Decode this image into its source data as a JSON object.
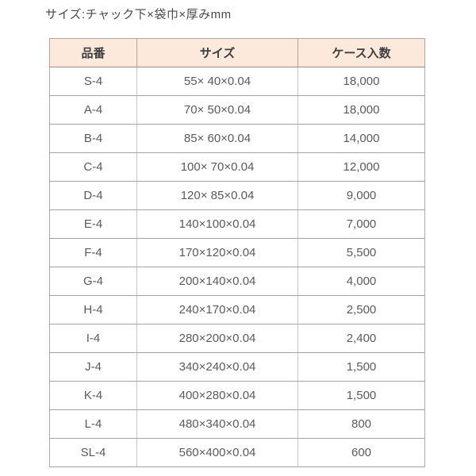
{
  "page": {
    "caption": "サイズ:チャック下×袋巾×厚みmm"
  },
  "table": {
    "columns": [
      "品番",
      "サイズ",
      "ケース入数"
    ],
    "rows": [
      {
        "part_no": "S-4",
        "size": "55× 40×0.04",
        "case_qty": "18,000"
      },
      {
        "part_no": "A-4",
        "size": "70× 50×0.04",
        "case_qty": "18,000"
      },
      {
        "part_no": "B-4",
        "size": "85× 60×0.04",
        "case_qty": "14,000"
      },
      {
        "part_no": "C-4",
        "size": "100× 70×0.04",
        "case_qty": "12,000"
      },
      {
        "part_no": "D-4",
        "size": "120× 85×0.04",
        "case_qty": "9,000"
      },
      {
        "part_no": "E-4",
        "size": "140×100×0.04",
        "case_qty": "7,000"
      },
      {
        "part_no": "F-4",
        "size": "170×120×0.04",
        "case_qty": "5,500"
      },
      {
        "part_no": "G-4",
        "size": "200×140×0.04",
        "case_qty": "4,000"
      },
      {
        "part_no": "H-4",
        "size": "240×170×0.04",
        "case_qty": "2,500"
      },
      {
        "part_no": "I-4",
        "size": "280×200×0.04",
        "case_qty": "2,400"
      },
      {
        "part_no": "J-4",
        "size": "340×240×0.04",
        "case_qty": "1,500"
      },
      {
        "part_no": "K-4",
        "size": "400×280×0.04",
        "case_qty": "1,500"
      },
      {
        "part_no": "L-4",
        "size": "480×340×0.04",
        "case_qty": "800"
      },
      {
        "part_no": "SL-4",
        "size": "560×400×0.04",
        "case_qty": "600"
      }
    ]
  },
  "colors": {
    "header_bg": "#fce9dc",
    "header_border": "#b3a59b",
    "row_border_horizontal": "#a3a3a3",
    "row_border_vertical": "#c6c6c6",
    "header_text": "#3f3f3f",
    "body_text": "#5a5a5a",
    "caption_text": "#4a4a4a"
  }
}
